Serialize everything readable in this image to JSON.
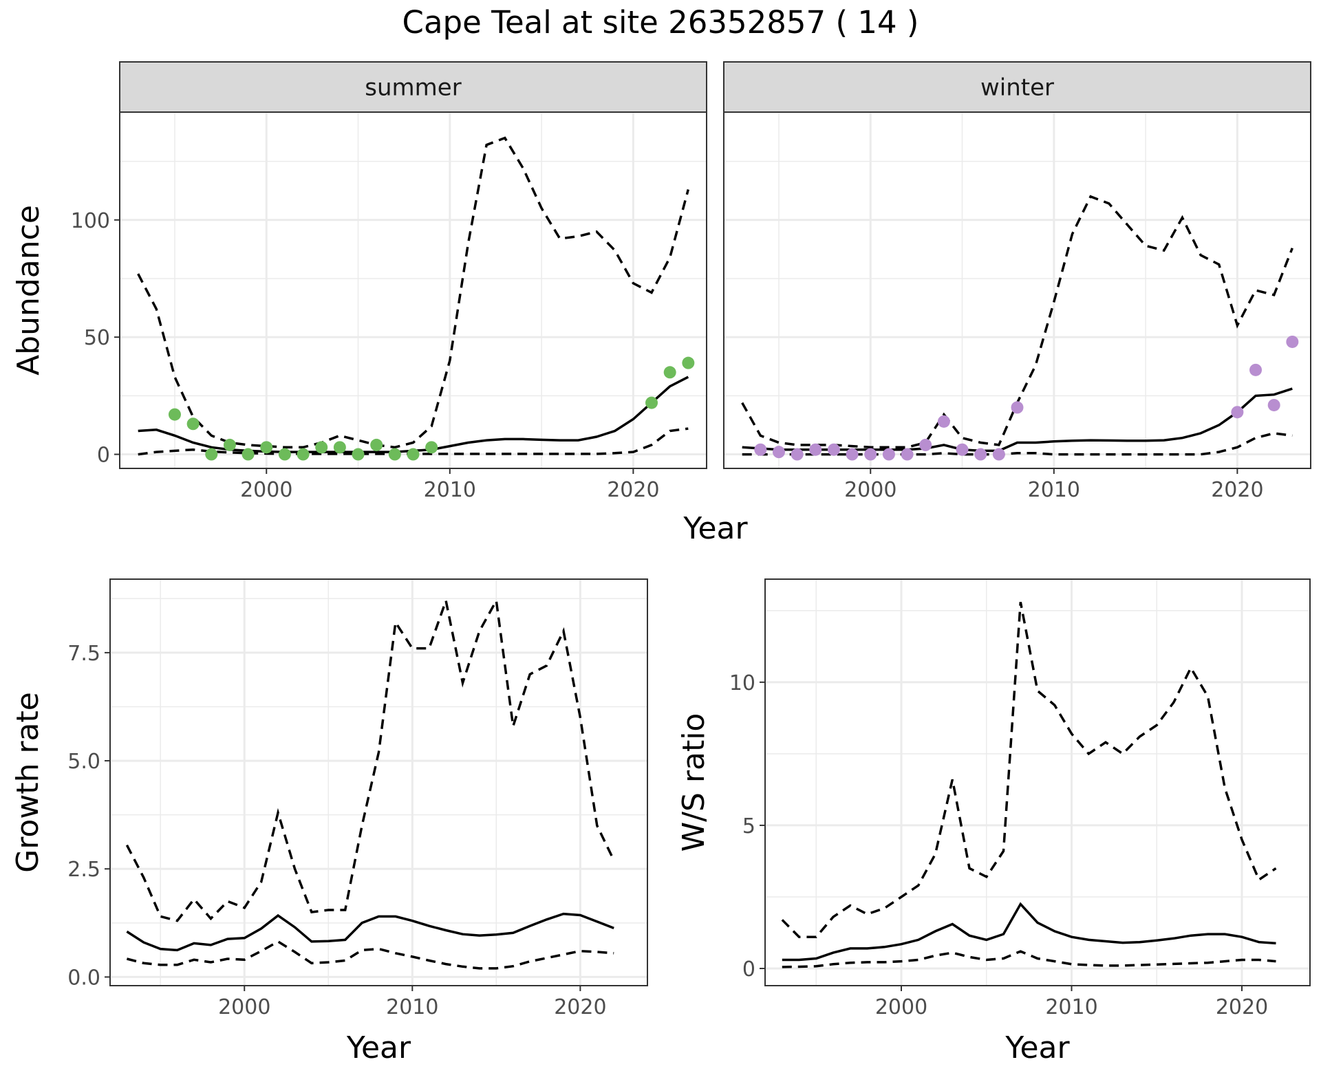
{
  "title": "Cape Teal at site 26352857 ( 14 )",
  "chart_data": [
    {
      "id": "abundance_summer",
      "type": "line",
      "strip": "summer",
      "ylabel": "Abundance",
      "xlabel": "",
      "xlim": [
        1992,
        2024
      ],
      "ylim": [
        -6,
        146
      ],
      "x_ticks": [
        2000,
        2010,
        2020
      ],
      "y_ticks": [
        0,
        50,
        100
      ],
      "grid": true,
      "point_color": "#6dbb5a",
      "series": [
        {
          "role": "mean",
          "x": [
            1993,
            1994,
            1995,
            1996,
            1997,
            1998,
            1999,
            2000,
            2001,
            2002,
            2003,
            2004,
            2005,
            2006,
            2007,
            2008,
            2009,
            2010,
            2011,
            2012,
            2013,
            2014,
            2015,
            2016,
            2017,
            2018,
            2019,
            2020,
            2021,
            2022,
            2023
          ],
          "y": [
            10,
            10.5,
            8,
            5,
            3,
            2,
            1.5,
            1.2,
            1,
            1,
            1,
            1,
            1,
            1,
            1,
            1.5,
            2,
            3.5,
            5,
            6,
            6.5,
            6.5,
            6.2,
            6,
            6,
            7.5,
            10,
            15,
            22,
            29,
            33
          ]
        },
        {
          "role": "lower",
          "x": [
            1993,
            1994,
            1995,
            1996,
            1997,
            1998,
            1999,
            2000,
            2001,
            2002,
            2003,
            2004,
            2005,
            2006,
            2007,
            2008,
            2009,
            2010,
            2011,
            2012,
            2013,
            2014,
            2015,
            2016,
            2017,
            2018,
            2019,
            2020,
            2021,
            2022,
            2023
          ],
          "y": [
            0,
            1,
            1.5,
            2,
            1.2,
            0.8,
            0.5,
            0.3,
            0.2,
            0.2,
            0.2,
            0.2,
            0.2,
            0.2,
            0.2,
            0.2,
            0.2,
            0.2,
            0.2,
            0.2,
            0.2,
            0.2,
            0.2,
            0.2,
            0.2,
            0.2,
            0.5,
            1,
            4,
            10,
            11
          ]
        },
        {
          "role": "upper",
          "x": [
            1993,
            1994,
            1995,
            1996,
            1997,
            1998,
            1999,
            2000,
            2001,
            2002,
            2003,
            2004,
            2005,
            2006,
            2007,
            2008,
            2009,
            2010,
            2011,
            2012,
            2013,
            2014,
            2015,
            2016,
            2017,
            2018,
            2019,
            2020,
            2021,
            2022,
            2023
          ],
          "y": [
            77,
            62,
            33,
            16,
            8,
            5,
            4,
            3.5,
            3,
            3,
            5,
            8,
            6,
            4,
            3,
            5,
            12,
            40,
            90,
            132,
            135,
            122,
            105,
            92,
            93,
            95,
            87,
            73,
            69,
            84,
            113
          ]
        },
        {
          "role": "observed",
          "x": [
            1995,
            1996,
            1997,
            1998,
            1999,
            2000,
            2001,
            2002,
            2003,
            2004,
            2005,
            2006,
            2007,
            2008,
            2009,
            2021,
            2022,
            2023
          ],
          "y": [
            17,
            13,
            0,
            4,
            0,
            3,
            0,
            0,
            3,
            3,
            0,
            4,
            0,
            0,
            3,
            22,
            35,
            39
          ]
        }
      ]
    },
    {
      "id": "abundance_winter",
      "type": "line",
      "strip": "winter",
      "ylabel": "",
      "xlabel": "",
      "xlim": [
        1992,
        2024
      ],
      "ylim": [
        -6,
        146
      ],
      "x_ticks": [
        2000,
        2010,
        2020
      ],
      "y_ticks": [
        0,
        50,
        100
      ],
      "grid": true,
      "point_color": "#b88ed0",
      "series": [
        {
          "role": "mean",
          "x": [
            1993,
            1994,
            1995,
            1996,
            1997,
            1998,
            1999,
            2000,
            2001,
            2002,
            2003,
            2004,
            2005,
            2006,
            2007,
            2008,
            2009,
            2010,
            2011,
            2012,
            2013,
            2014,
            2015,
            2016,
            2017,
            2018,
            2019,
            2020,
            2021,
            2022,
            2023
          ],
          "y": [
            3,
            2.5,
            2,
            2,
            2,
            2,
            2,
            2,
            2,
            2,
            2.5,
            4,
            2,
            1.5,
            1.5,
            5,
            5,
            5.5,
            5.8,
            6,
            5.9,
            5.8,
            5.8,
            6,
            7,
            9,
            12.5,
            18,
            25,
            25.5,
            28
          ]
        },
        {
          "role": "lower",
          "x": [
            1993,
            1994,
            1995,
            1996,
            1997,
            1998,
            1999,
            2000,
            2001,
            2002,
            2003,
            2004,
            2005,
            2006,
            2007,
            2008,
            2009,
            2010,
            2011,
            2012,
            2013,
            2014,
            2015,
            2016,
            2017,
            2018,
            2019,
            2020,
            2021,
            2022,
            2023
          ],
          "y": [
            0,
            0,
            0,
            0,
            0,
            0,
            0,
            0,
            0,
            0,
            0,
            0.5,
            0,
            0,
            0,
            0.5,
            0.5,
            0,
            0,
            0,
            0,
            0,
            0,
            0,
            0,
            0,
            1,
            3,
            7,
            9,
            8
          ]
        },
        {
          "role": "upper",
          "x": [
            1993,
            1994,
            1995,
            1996,
            1997,
            1998,
            1999,
            2000,
            2001,
            2002,
            2003,
            2004,
            2005,
            2006,
            2007,
            2008,
            2009,
            2010,
            2011,
            2012,
            2013,
            2014,
            2015,
            2016,
            2017,
            2018,
            2019,
            2020,
            2021,
            2022,
            2023
          ],
          "y": [
            22,
            8,
            5,
            4,
            4,
            4,
            3.5,
            3,
            3,
            3,
            5,
            17,
            7,
            5,
            4,
            22,
            38,
            65,
            94,
            110,
            107,
            98,
            89,
            87,
            101,
            85,
            81,
            55,
            70,
            68,
            88
          ]
        },
        {
          "role": "observed",
          "x": [
            1994,
            1995,
            1996,
            1997,
            1998,
            1999,
            2000,
            2001,
            2002,
            2003,
            2004,
            2005,
            2006,
            2007,
            2008,
            2020,
            2021,
            2022,
            2023
          ],
          "y": [
            2,
            1,
            0,
            2,
            2,
            0,
            0,
            0,
            0,
            4,
            14,
            2,
            0,
            0,
            20,
            18,
            36,
            21,
            48
          ]
        }
      ]
    },
    {
      "id": "growth_rate",
      "type": "line",
      "ylabel": "Growth rate",
      "xlabel": "Year",
      "xlim": [
        1992,
        2024
      ],
      "ylim": [
        -0.2,
        9.2
      ],
      "x_ticks": [
        2000,
        2010,
        2020
      ],
      "y_ticks": [
        0.0,
        2.5,
        5.0,
        7.5
      ],
      "y_tick_labels": [
        "0.0",
        "2.5",
        "5.0",
        "7.5"
      ],
      "grid": true,
      "series": [
        {
          "role": "mean",
          "x": [
            1993,
            1994,
            1995,
            1996,
            1997,
            1998,
            1999,
            2000,
            2001,
            2002,
            2003,
            2004,
            2005,
            2006,
            2007,
            2008,
            2009,
            2010,
            2011,
            2012,
            2013,
            2014,
            2015,
            2016,
            2017,
            2018,
            2019,
            2020,
            2021,
            2022
          ],
          "y": [
            1.05,
            0.8,
            0.65,
            0.62,
            0.78,
            0.74,
            0.88,
            0.9,
            1.12,
            1.42,
            1.15,
            0.82,
            0.83,
            0.86,
            1.25,
            1.4,
            1.4,
            1.3,
            1.18,
            1.08,
            0.99,
            0.96,
            0.98,
            1.02,
            1.18,
            1.33,
            1.46,
            1.43,
            1.28,
            1.13
          ]
        },
        {
          "role": "lower",
          "x": [
            1993,
            1994,
            1995,
            1996,
            1997,
            1998,
            1999,
            2000,
            2001,
            2002,
            2003,
            2004,
            2005,
            2006,
            2007,
            2008,
            2009,
            2010,
            2011,
            2012,
            2013,
            2014,
            2015,
            2016,
            2017,
            2018,
            2019,
            2020,
            2021,
            2022
          ],
          "y": [
            0.42,
            0.32,
            0.28,
            0.28,
            0.4,
            0.34,
            0.42,
            0.4,
            0.6,
            0.82,
            0.58,
            0.32,
            0.34,
            0.38,
            0.62,
            0.65,
            0.55,
            0.47,
            0.38,
            0.3,
            0.24,
            0.2,
            0.2,
            0.25,
            0.36,
            0.44,
            0.52,
            0.6,
            0.58,
            0.55
          ]
        },
        {
          "role": "upper",
          "x": [
            1993,
            1994,
            1995,
            1996,
            1997,
            1998,
            1999,
            2000,
            2001,
            2002,
            2003,
            2004,
            2005,
            2006,
            2007,
            2008,
            2009,
            2010,
            2011,
            2012,
            2013,
            2014,
            2015,
            2016,
            2017,
            2018,
            2019,
            2020,
            2021,
            2022
          ],
          "y": [
            3.05,
            2.3,
            1.4,
            1.3,
            1.8,
            1.35,
            1.75,
            1.6,
            2.2,
            3.8,
            2.5,
            1.5,
            1.55,
            1.55,
            3.5,
            5.2,
            8.2,
            7.6,
            7.6,
            8.7,
            6.8,
            8,
            8.7,
            5.8,
            7,
            7.2,
            8,
            6,
            3.5,
            2.7
          ]
        }
      ]
    },
    {
      "id": "ws_ratio",
      "type": "line",
      "ylabel": "W/S ratio",
      "xlabel": "Year",
      "xlim": [
        1992,
        2024
      ],
      "ylim": [
        -0.6,
        13.6
      ],
      "x_ticks": [
        2000,
        2010,
        2020
      ],
      "y_ticks": [
        0,
        5,
        10
      ],
      "grid": true,
      "series": [
        {
          "role": "mean",
          "x": [
            1993,
            1994,
            1995,
            1996,
            1997,
            1998,
            1999,
            2000,
            2001,
            2002,
            2003,
            2004,
            2005,
            2006,
            2007,
            2008,
            2009,
            2010,
            2011,
            2012,
            2013,
            2014,
            2015,
            2016,
            2017,
            2018,
            2019,
            2020,
            2021,
            2022
          ],
          "y": [
            0.3,
            0.3,
            0.35,
            0.55,
            0.7,
            0.7,
            0.75,
            0.85,
            1,
            1.3,
            1.55,
            1.15,
            1,
            1.2,
            2.25,
            1.6,
            1.3,
            1.1,
            1,
            0.95,
            0.9,
            0.92,
            0.98,
            1.05,
            1.15,
            1.2,
            1.2,
            1.1,
            0.92,
            0.88
          ]
        },
        {
          "role": "lower",
          "x": [
            1993,
            1994,
            1995,
            1996,
            1997,
            1998,
            1999,
            2000,
            2001,
            2002,
            2003,
            2004,
            2005,
            2006,
            2007,
            2008,
            2009,
            2010,
            2011,
            2012,
            2013,
            2014,
            2015,
            2016,
            2017,
            2018,
            2019,
            2020,
            2021,
            2022
          ],
          "y": [
            0.05,
            0.06,
            0.08,
            0.15,
            0.2,
            0.22,
            0.22,
            0.25,
            0.3,
            0.45,
            0.55,
            0.4,
            0.3,
            0.35,
            0.6,
            0.35,
            0.25,
            0.15,
            0.12,
            0.1,
            0.1,
            0.12,
            0.14,
            0.16,
            0.18,
            0.2,
            0.25,
            0.3,
            0.3,
            0.25
          ]
        },
        {
          "role": "upper",
          "x": [
            1993,
            1994,
            1995,
            1996,
            1997,
            1998,
            1999,
            2000,
            2001,
            2002,
            2003,
            2004,
            2005,
            2006,
            2007,
            2008,
            2009,
            2010,
            2011,
            2012,
            2013,
            2014,
            2015,
            2016,
            2017,
            2018,
            2019,
            2020,
            2021,
            2022
          ],
          "y": [
            1.7,
            1.1,
            1.1,
            1.8,
            2.2,
            1.9,
            2.1,
            2.5,
            2.9,
            4,
            6.6,
            3.5,
            3.2,
            4.1,
            12.8,
            9.7,
            9.2,
            8.2,
            7.5,
            7.9,
            7.5,
            8.1,
            8.5,
            9.3,
            10.5,
            9.5,
            6.3,
            4.5,
            3.1,
            3.5
          ]
        }
      ]
    }
  ]
}
